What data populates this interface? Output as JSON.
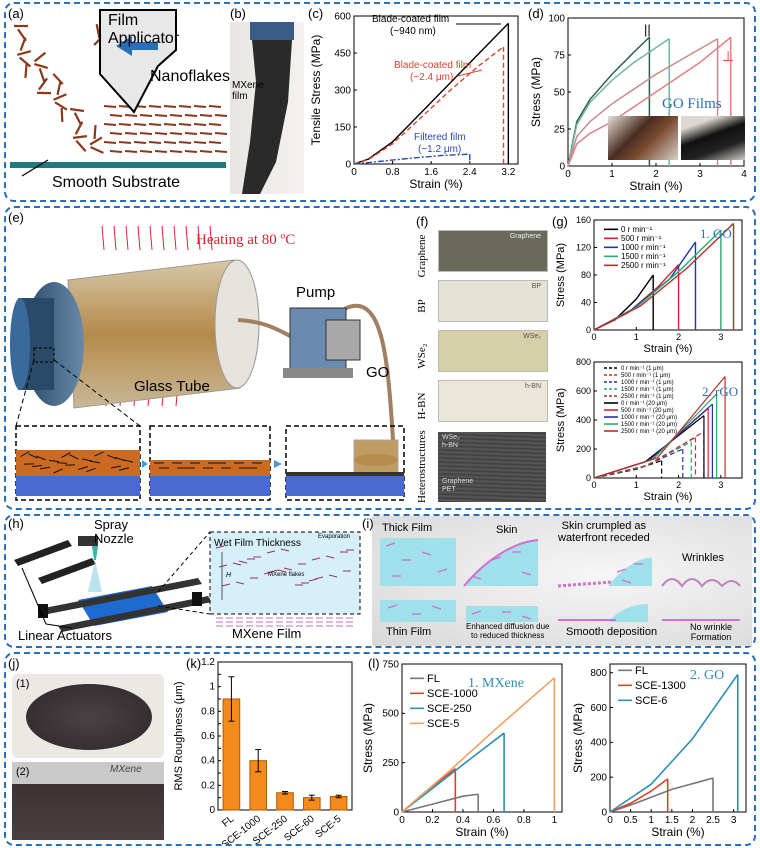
{
  "row1": {
    "a": {
      "label": "(a)",
      "applicator": "Film\nApplicator",
      "nanoflakes": "Nanoflakes",
      "substrate": "Smooth Substrate"
    },
    "b": {
      "label": "(b)",
      "film": "MXene\nfilm"
    },
    "c": {
      "label": "(c)",
      "ylabel": "Tensile Stress (MPa)",
      "xlabel": "Strain (%)",
      "ann_blade1": "Blade-coated film",
      "ann_blade1b": "(~940 nm)",
      "ann_blade2": "Blade-coated film",
      "ann_blade2b": "(~2.4 μm)",
      "ann_filt": "Filtered film",
      "ann_filtb": "(~1.2 μm)"
    },
    "d": {
      "label": "(d)",
      "ylabel": "Stress (MPa)",
      "xlabel": "Strain (%)",
      "title": "GO Films",
      "par": "||",
      "perp": "⊥"
    }
  },
  "row2": {
    "e": {
      "label": "(e)",
      "heating": "Heating at 80 ºC",
      "pump": "Pump",
      "go": "GO",
      "tube": "Glass Tube"
    },
    "f": {
      "label": "(f)",
      "rows": [
        "Graphene",
        "BP",
        "WSe₂",
        "H-BN",
        "Heterostructures"
      ],
      "tags": [
        "Graphene",
        "BP",
        "WSe₂",
        "h-BN"
      ],
      "het_tags": [
        "WSe₂",
        "h-BN",
        "Graphene",
        "PET"
      ]
    },
    "g": {
      "label": "(g)",
      "ylabel": "Stress (MPa)",
      "xlabel": "Strain (%)",
      "title1": "1. GO",
      "title2": "2. rGO",
      "legend1": [
        "0 r min⁻¹",
        "500 r min⁻¹",
        "1000 r min⁻¹",
        "1500 r min⁻¹",
        "2500 r min⁻¹"
      ],
      "legend2": [
        "0 r min⁻¹ (1 μm)",
        "500 r min⁻¹ (1 μm)",
        "1000 r min⁻¹ (1 μm)",
        "1500 r min⁻¹ (1 μm)",
        "2500 r min⁻¹ (1 μm)",
        "0 r min⁻¹ (20 μm)",
        "500 r min⁻¹ (20 μm)",
        "1000 r min⁻¹ (20 μm)",
        "1500 r min⁻¹ (20 μm)",
        "2500 r min⁻¹ (20 μm)"
      ]
    }
  },
  "row3": {
    "h": {
      "label": "(h)",
      "spray": "Spray\nNozzle",
      "actuators": "Linear Actuators",
      "mxene": "MXene Film",
      "wet": "Wet Film Thickness",
      "evap": "Evaporation",
      "flakes": "MXene flakes",
      "H": "H"
    },
    "i": {
      "label": "(i)",
      "thick": "Thick Film",
      "skin": "Skin",
      "crumpled": "Skin crumpled as\nwaterfront receded",
      "wrinkles": "Wrinkles",
      "thin": "Thin Film",
      "enhanced": "Enhanced diffusion due\nto reduced thickness",
      "smooth": "Smooth deposition",
      "nowrinkle": "No wrinkle\nFormation"
    }
  },
  "row4": {
    "j": {
      "label": "(j)",
      "s1": "(1)",
      "s2": "(2)",
      "mx": "MXene"
    },
    "k": {
      "label": "(k)",
      "ylabel": "RMS Roughness (μm)"
    },
    "l": {
      "label": "(l)",
      "ylabel": "Stress (MPa)",
      "xlabel": "Strain (%)",
      "title1": "1. MXene",
      "title2": "2. GO",
      "legend1": [
        "FL",
        "SCE-1000",
        "SCE-250",
        "SCE-5"
      ],
      "legend2": [
        "FL",
        "SCE-1300",
        "SCE-6"
      ]
    }
  },
  "chart_data": [
    {
      "id": "c",
      "type": "line",
      "xlabel": "Strain (%)",
      "ylabel": "Tensile Stress (MPa)",
      "xlim": [
        0,
        3.4
      ],
      "ylim": [
        0,
        600
      ],
      "xticks": [
        0,
        0.8,
        1.6,
        2.4,
        3.2
      ],
      "yticks": [
        0,
        150,
        300,
        450,
        600
      ],
      "series": [
        {
          "name": "Blade-coated film (~940 nm)",
          "color": "#000000",
          "dash": "solid",
          "x": [
            0,
            0.3,
            0.8,
            1.4,
            2.0,
            2.6,
            3.2
          ],
          "y": [
            0,
            20,
            90,
            210,
            330,
            450,
            570
          ]
        },
        {
          "name": "Blade-coated film (~2.4 μm)",
          "color": "#d9432b",
          "dash": "dashed",
          "x": [
            0,
            0.3,
            0.8,
            1.4,
            2.0,
            2.6,
            3.1
          ],
          "y": [
            0,
            18,
            82,
            190,
            300,
            400,
            475
          ]
        },
        {
          "name": "Filtered film (~1.2 μm)",
          "color": "#2a4aa8",
          "dash": "dashdot",
          "x": [
            0,
            0.6,
            1.2,
            1.8,
            2.4
          ],
          "y": [
            0,
            12,
            24,
            34,
            40
          ]
        }
      ]
    },
    {
      "id": "d",
      "type": "line",
      "xlabel": "Strain (%)",
      "ylabel": "Stress (MPa)",
      "xlim": [
        0,
        4
      ],
      "ylim": [
        0,
        100
      ],
      "xticks": [
        0,
        1,
        2,
        3,
        4
      ],
      "yticks": [
        0,
        25,
        50,
        75,
        100
      ],
      "series": [
        {
          "color": "#2d5f4f",
          "x": [
            0,
            0.2,
            0.5,
            1.0,
            1.5,
            1.85
          ],
          "y": [
            0,
            30,
            45,
            62,
            77,
            87
          ]
        },
        {
          "color": "#6fb7a3",
          "x": [
            0,
            0.2,
            0.5,
            1.0,
            1.5,
            2.3
          ],
          "y": [
            0,
            28,
            43,
            58,
            70,
            86
          ]
        },
        {
          "color": "#c98a8a",
          "x": [
            0,
            0.2,
            0.5,
            1.0,
            2.0,
            3.4
          ],
          "y": [
            0,
            20,
            30,
            42,
            62,
            86
          ]
        },
        {
          "color": "#e08080",
          "x": [
            0,
            0.2,
            0.5,
            1.0,
            2.0,
            3.0,
            3.7
          ],
          "y": [
            0,
            15,
            22,
            30,
            50,
            70,
            87
          ]
        }
      ]
    },
    {
      "id": "g1",
      "type": "line",
      "xlabel": "Strain (%)",
      "ylabel": "Stress (MPa)",
      "xlim": [
        0,
        3.5
      ],
      "ylim": [
        0,
        160
      ],
      "xticks": [
        0,
        1,
        2,
        3
      ],
      "yticks": [
        0,
        40,
        80,
        120,
        160
      ],
      "series": [
        {
          "name": "0 r min⁻¹",
          "color": "#000000",
          "x": [
            0,
            0.5,
            1.0,
            1.4
          ],
          "y": [
            0,
            15,
            45,
            80
          ]
        },
        {
          "name": "500 r min⁻¹",
          "color": "#d9232b",
          "x": [
            0,
            0.8,
            1.5,
            2.0
          ],
          "y": [
            0,
            25,
            62,
            95
          ]
        },
        {
          "name": "1000 r min⁻¹",
          "color": "#1f35a8",
          "x": [
            0,
            0.9,
            1.8,
            2.4
          ],
          "y": [
            0,
            30,
            75,
            128
          ]
        },
        {
          "name": "1500 r min⁻¹",
          "color": "#2bab6f",
          "x": [
            0,
            1.0,
            2.0,
            3.0
          ],
          "y": [
            0,
            33,
            85,
            145
          ]
        },
        {
          "name": "2500 r min⁻¹",
          "color": "#b4302d",
          "x": [
            0,
            1.1,
            2.2,
            3.3
          ],
          "y": [
            0,
            35,
            90,
            155
          ]
        }
      ]
    },
    {
      "id": "g2",
      "type": "line",
      "xlabel": "Strain (%)",
      "ylabel": "Stress (MPa)",
      "xlim": [
        0,
        3.5
      ],
      "ylim": [
        0,
        800
      ],
      "xticks": [
        0,
        1,
        2,
        3
      ],
      "yticks": [
        0,
        200,
        400,
        600,
        800
      ],
      "series": [
        {
          "color": "#000000",
          "dash": "dashed",
          "x": [
            0,
            1.0,
            1.6
          ],
          "y": [
            0,
            60,
            120
          ]
        },
        {
          "color": "#d9232b",
          "dash": "dashed",
          "x": [
            0,
            1.2,
            2.4
          ],
          "y": [
            0,
            80,
            280
          ]
        },
        {
          "color": "#1f35a8",
          "dash": "dashed",
          "x": [
            0,
            1.1,
            2.1
          ],
          "y": [
            0,
            70,
            200
          ]
        },
        {
          "color": "#2bab6f",
          "dash": "dashed",
          "x": [
            0,
            1.2,
            2.3
          ],
          "y": [
            0,
            80,
            250
          ]
        },
        {
          "color": "#b4302d",
          "dash": "dashed",
          "x": [
            0,
            1.3,
            2.6
          ],
          "y": [
            0,
            90,
            320
          ]
        },
        {
          "color": "#000000",
          "x": [
            0,
            1.2,
            2.6
          ],
          "y": [
            0,
            110,
            430
          ]
        },
        {
          "color": "#d9232b",
          "x": [
            0,
            1.3,
            2.7
          ],
          "y": [
            0,
            120,
            480
          ]
        },
        {
          "color": "#1f35a8",
          "x": [
            0,
            1.3,
            2.8
          ],
          "y": [
            0,
            120,
            510
          ]
        },
        {
          "color": "#2bab6f",
          "x": [
            0,
            1.4,
            2.9
          ],
          "y": [
            0,
            130,
            580
          ]
        },
        {
          "color": "#b4302d",
          "x": [
            0,
            1.5,
            3.1
          ],
          "y": [
            0,
            140,
            700
          ]
        }
      ]
    },
    {
      "id": "k",
      "type": "bar",
      "ylabel": "RMS Roughness (μm)",
      "ylim": [
        0,
        1.2
      ],
      "yticks": [
        0,
        0.1,
        0.2,
        0.3,
        0.4,
        0.5,
        0.6,
        0.7,
        0.8,
        0.9,
        1,
        1.1,
        1.2
      ],
      "categories": [
        "FL",
        "SCE-1000",
        "SCE-250",
        "SCE-60",
        "SCE-5"
      ],
      "values": [
        0.9,
        0.4,
        0.14,
        0.1,
        0.11
      ],
      "errors": [
        0.18,
        0.09,
        0.01,
        0.02,
        0.01
      ],
      "color": "#f28a1c"
    },
    {
      "id": "l1",
      "type": "line",
      "xlabel": "Strain (%)",
      "ylabel": "Stress (MPa)",
      "xlim": [
        0,
        1.05
      ],
      "ylim": [
        0,
        750
      ],
      "xticks": [
        0,
        0.2,
        0.4,
        0.6,
        0.8,
        1
      ],
      "yticks": [
        0,
        250,
        500,
        750
      ],
      "series": [
        {
          "name": "FL",
          "color": "#777777",
          "x": [
            0,
            0.2,
            0.4,
            0.5
          ],
          "y": [
            0,
            40,
            80,
            90
          ]
        },
        {
          "name": "SCE-1000",
          "color": "#d9432b",
          "x": [
            0,
            0.15,
            0.3,
            0.35
          ],
          "y": [
            0,
            100,
            190,
            220
          ]
        },
        {
          "name": "SCE-250",
          "color": "#2a8fb5",
          "x": [
            0,
            0.2,
            0.45,
            0.67
          ],
          "y": [
            0,
            120,
            270,
            400
          ]
        },
        {
          "name": "SCE-5",
          "color": "#f0a060",
          "x": [
            0,
            0.3,
            0.6,
            1.0
          ],
          "y": [
            0,
            200,
            410,
            680
          ]
        }
      ]
    },
    {
      "id": "l2",
      "type": "line",
      "xlabel": "Strain (%)",
      "ylabel": "Stress (MPa)",
      "xlim": [
        0,
        3.3
      ],
      "ylim": [
        0,
        850
      ],
      "xticks": [
        0,
        0.5,
        1,
        1.5,
        2,
        2.5,
        3
      ],
      "yticks": [
        0,
        200,
        400,
        600,
        800
      ],
      "series": [
        {
          "name": "FL",
          "color": "#777777",
          "x": [
            0,
            0.5,
            1.5,
            2.5
          ],
          "y": [
            0,
            40,
            130,
            195
          ]
        },
        {
          "name": "SCE-1300",
          "color": "#d9432b",
          "x": [
            0,
            0.5,
            1.0,
            1.4
          ],
          "y": [
            0,
            50,
            120,
            190
          ]
        },
        {
          "name": "SCE-6",
          "color": "#2a8fb5",
          "x": [
            0,
            1.0,
            2.0,
            3.1
          ],
          "y": [
            0,
            160,
            420,
            790
          ]
        }
      ]
    }
  ]
}
